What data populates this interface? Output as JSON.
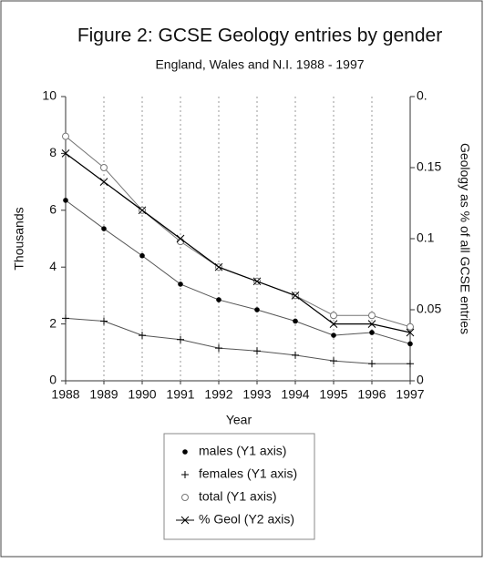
{
  "chart_data": {
    "type": "line",
    "title": "Figure 2: GCSE Geology entries by gender",
    "subtitle": "England, Wales and N.I. 1988 - 1997",
    "x_label": "Year",
    "y_label": "Thousands",
    "y2_label": "Geology as % of all GCSE entries",
    "categories": [
      "1988",
      "1989",
      "1990",
      "1991",
      "1992",
      "1993",
      "1994",
      "1995",
      "1996",
      "1997"
    ],
    "ylim": [
      0,
      10
    ],
    "yticks": [
      0,
      2,
      4,
      6,
      8,
      10
    ],
    "y2lim": [
      0,
      0.2
    ],
    "y2ticks": [
      0,
      0.05,
      0.1,
      0.15,
      {
        "value": 0.2,
        "label": "0."
      }
    ],
    "xgrid": true,
    "series": [
      {
        "name": "males (Y1 axis)",
        "color": "#555555",
        "marker": "dot",
        "values": [
          6.35,
          5.35,
          4.4,
          3.4,
          2.85,
          2.5,
          2.1,
          1.6,
          1.7,
          1.3
        ]
      },
      {
        "name": "females (Y1 axis)",
        "color": "#555555",
        "marker": "plus",
        "values": [
          2.2,
          2.1,
          1.6,
          1.45,
          1.15,
          1.05,
          0.9,
          0.7,
          0.6,
          0.6
        ]
      },
      {
        "name": "total (Y1 axis)",
        "color": "#777777",
        "marker": "circle",
        "values": [
          8.6,
          7.5,
          6.0,
          4.9,
          4.0,
          3.5,
          3.0,
          2.3,
          2.3,
          1.9
        ]
      },
      {
        "name": "% Geol (Y2 axis)",
        "color": "#000000",
        "marker": "cross",
        "axis": "y2",
        "values": [
          0.16,
          0.14,
          0.12,
          0.1,
          0.08,
          0.07,
          0.06,
          0.04,
          0.04,
          0.034
        ]
      }
    ]
  }
}
